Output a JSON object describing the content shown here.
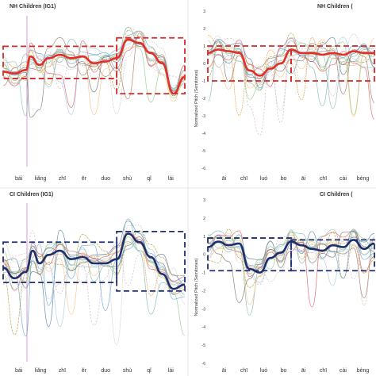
{
  "panels": [
    {
      "id": "nh-ig1",
      "title": "NH Children (IG1)",
      "ylabel": "",
      "yticks": [],
      "syllables": [
        "bái",
        "liǎng",
        "zhī",
        "ěr",
        "duo",
        "shù",
        "qǐ",
        "lái"
      ],
      "mean_color": "#e0302a",
      "box_color": "#d62828",
      "mean_contour": [
        [
          0.0,
          -0.3
        ],
        [
          0.5,
          -0.4
        ],
        [
          1.0,
          -0.2
        ],
        [
          1.2,
          0.6
        ],
        [
          1.6,
          0.1
        ],
        [
          2.0,
          0.5
        ],
        [
          2.5,
          0.7
        ],
        [
          3.0,
          0.5
        ],
        [
          3.5,
          0.6
        ],
        [
          4.0,
          0.2
        ],
        [
          4.5,
          0.3
        ],
        [
          5.0,
          0.5
        ],
        [
          5.5,
          1.6
        ],
        [
          6.0,
          1.4
        ],
        [
          6.5,
          0.8
        ],
        [
          7.0,
          0.2
        ],
        [
          7.5,
          -1.6
        ],
        [
          8.0,
          -0.6
        ]
      ],
      "boxes": [
        [
          0.0,
          -0.7,
          5.0,
          1.2
        ],
        [
          5.0,
          -1.6,
          8.0,
          1.7
        ]
      ],
      "chart_data": {
        "type": "line",
        "title": "NH Children (IG1)",
        "categories": [
          "bái",
          "liǎng",
          "zhī",
          "ěr",
          "duo",
          "shù",
          "qǐ",
          "lái"
        ],
        "ylim": [
          -6,
          3
        ],
        "series": []
      }
    },
    {
      "id": "nh-ig2",
      "title": "NH Children (",
      "ylabel": "Normalized Pitch (Semitones)",
      "yticks": [
        "3",
        "2",
        "1",
        "0",
        "-1",
        "-2",
        "-3",
        "-4",
        "-5",
        "-6"
      ],
      "syllables": [
        "āi",
        "chī",
        "luó",
        "bo",
        "āi",
        "chī",
        "cài",
        "bèng"
      ],
      "mean_color": "#e0302a",
      "box_color": "#d62828",
      "mean_contour": [
        [
          0.0,
          0.6
        ],
        [
          0.5,
          0.8
        ],
        [
          1.0,
          0.7
        ],
        [
          1.5,
          0.6
        ],
        [
          2.0,
          -0.4
        ],
        [
          2.5,
          -0.7
        ],
        [
          3.0,
          -0.3
        ],
        [
          3.5,
          0.0
        ],
        [
          4.0,
          0.8
        ],
        [
          4.5,
          0.6
        ],
        [
          5.0,
          0.6
        ],
        [
          5.5,
          0.5
        ],
        [
          6.0,
          0.6
        ],
        [
          6.5,
          0.5
        ],
        [
          7.0,
          0.7
        ],
        [
          7.5,
          0.6
        ],
        [
          8.0,
          0.6
        ]
      ],
      "boxes": [
        [
          0.0,
          -1.0,
          4.0,
          1.0
        ],
        [
          4.0,
          -1.0,
          8.0,
          1.0
        ]
      ],
      "chart_data": {
        "type": "line",
        "title": "NH Children (",
        "ylabel": "Normalized Pitch (Semitones)",
        "categories": [
          "āi",
          "chī",
          "luó",
          "bo",
          "āi",
          "chī",
          "cài",
          "bèng"
        ],
        "ylim": [
          -6,
          3
        ],
        "series": []
      }
    },
    {
      "id": "ci-ig1",
      "title": "CI Children (IG1)",
      "ylabel": "",
      "yticks": [],
      "syllables": [
        "bái",
        "liǎng",
        "zhī",
        "ěr",
        "duo",
        "shù",
        "qǐ",
        "lái"
      ],
      "mean_color": "#1f2f6e",
      "box_color": "#1f2f6e",
      "mean_contour": [
        [
          0.0,
          0.0
        ],
        [
          0.5,
          -0.5
        ],
        [
          1.0,
          -0.2
        ],
        [
          1.3,
          0.8
        ],
        [
          1.6,
          0.2
        ],
        [
          2.0,
          0.6
        ],
        [
          2.5,
          0.8
        ],
        [
          3.0,
          0.4
        ],
        [
          3.5,
          0.5
        ],
        [
          4.0,
          0.2
        ],
        [
          4.5,
          0.2
        ],
        [
          5.0,
          0.4
        ],
        [
          5.5,
          1.6
        ],
        [
          6.0,
          1.2
        ],
        [
          6.5,
          0.5
        ],
        [
          7.0,
          -0.3
        ],
        [
          7.5,
          -1.0
        ],
        [
          8.0,
          -0.8
        ]
      ],
      "boxes": [
        [
          0.0,
          -0.7,
          5.0,
          1.2
        ],
        [
          5.0,
          -1.1,
          8.0,
          1.7
        ]
      ],
      "chart_data": {
        "type": "line",
        "title": "CI Children (IG1)",
        "categories": [
          "bái",
          "liǎng",
          "zhī",
          "ěr",
          "duo",
          "shù",
          "qǐ",
          "lái"
        ],
        "ylim": [
          -4.5,
          3
        ],
        "series": []
      }
    },
    {
      "id": "ci-ig2",
      "title": "CI Children (",
      "ylabel": "Normalized Pitch (Semitones)",
      "yticks": [
        "3",
        "2",
        "1",
        "0",
        "-1",
        "-2",
        "-3",
        "-4",
        "-5",
        "-6"
      ],
      "syllables": [
        "āi",
        "chī",
        "luó",
        "bo",
        "āi",
        "chī",
        "cài",
        "bèng"
      ],
      "mean_color": "#1f2f6e",
      "box_color": "#1f2f6e",
      "mean_contour": [
        [
          0.0,
          0.4
        ],
        [
          0.5,
          0.7
        ],
        [
          1.0,
          0.5
        ],
        [
          1.5,
          0.6
        ],
        [
          2.0,
          -0.8
        ],
        [
          2.5,
          -1.0
        ],
        [
          3.0,
          -0.2
        ],
        [
          3.5,
          0.1
        ],
        [
          4.0,
          0.7
        ],
        [
          4.5,
          0.5
        ],
        [
          5.0,
          0.3
        ],
        [
          5.5,
          0.2
        ],
        [
          6.0,
          0.5
        ],
        [
          6.5,
          0.4
        ],
        [
          7.0,
          0.8
        ],
        [
          7.5,
          0.3
        ],
        [
          8.0,
          0.6
        ]
      ],
      "boxes": [
        [
          0.0,
          -0.9,
          4.0,
          0.9
        ],
        [
          4.0,
          -0.9,
          8.0,
          0.8
        ]
      ],
      "chart_data": {
        "type": "line",
        "title": "CI Children (",
        "ylabel": "Normalized Pitch (Semitones)",
        "categories": [
          "āi",
          "chī",
          "luó",
          "bo",
          "āi",
          "chī",
          "cài",
          "bèng"
        ],
        "ylim": [
          -6,
          3
        ],
        "series": []
      }
    }
  ],
  "individual_colors": [
    "#4e79a7",
    "#f28e2b",
    "#8cd17d",
    "#b6992d",
    "#76b7b2",
    "#9c755f",
    "#bab0ac",
    "#5fa2ce",
    "#e15759",
    "#d4a6c8",
    "#86bcb6",
    "#79706e",
    "#a0cbe8",
    "#ffbe7d"
  ]
}
